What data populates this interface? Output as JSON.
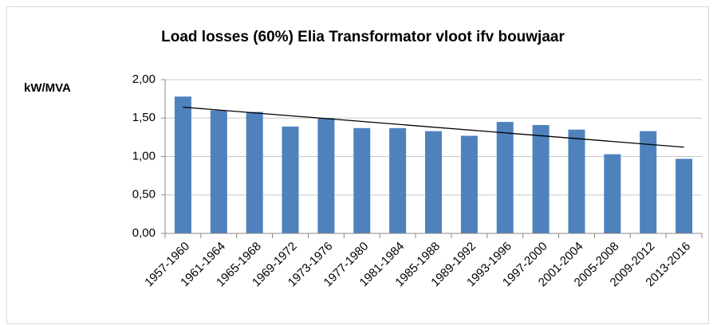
{
  "chart_data": {
    "type": "bar",
    "title": "Load losses (60%) Elia  Transformator vloot ifv bouwjaar",
    "y_label": "kW/MVA",
    "categories": [
      "1957-1960",
      "1961-1964",
      "1965-1968",
      "1969-1972",
      "1973-1976",
      "1977-1980",
      "1981-1984",
      "1985-1988",
      "1989-1992",
      "1993-1996",
      "1997-2000",
      "2001-2004",
      "2005-2008",
      "2009-2012",
      "2013-2016"
    ],
    "values": [
      1.78,
      1.6,
      1.58,
      1.39,
      1.5,
      1.37,
      1.37,
      1.33,
      1.27,
      1.45,
      1.41,
      1.35,
      1.03,
      1.33,
      0.97
    ],
    "color": "#4f81bd",
    "trendline": "linear",
    "ylim": [
      0,
      2
    ],
    "yticks": [
      {
        "value": 0,
        "label": "0,00"
      },
      {
        "value": 0.5,
        "label": "0,50"
      },
      {
        "value": 1,
        "label": "1,00"
      },
      {
        "value": 1.5,
        "label": "1,50"
      },
      {
        "value": 2,
        "label": "2,00"
      }
    ],
    "grid": true
  }
}
